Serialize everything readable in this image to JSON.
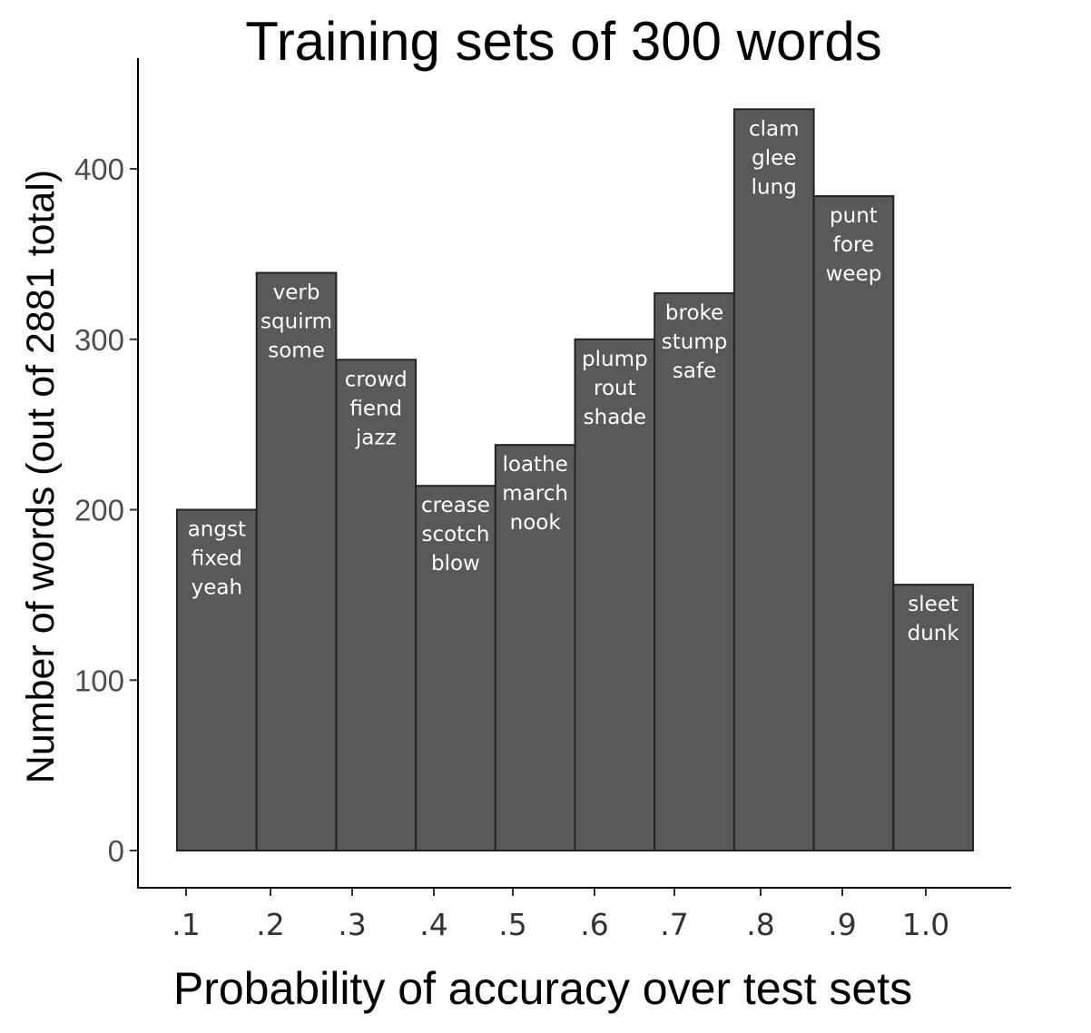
{
  "chart_data": {
    "type": "bar",
    "title": "Training sets of 300 words",
    "xlabel": "Probability of accuracy over test sets",
    "ylabel": "Number of words (out of 2881 total)",
    "categories": [
      ".1",
      ".2",
      ".3",
      ".4",
      ".5",
      ".6",
      ".7",
      ".8",
      ".9",
      "1.0"
    ],
    "x_ticks": [
      ".1",
      ".2",
      ".3",
      ".4",
      ".5",
      ".6",
      ".7",
      ".8",
      ".9",
      "1.0"
    ],
    "values": [
      200,
      339,
      288,
      214,
      238,
      300,
      327,
      435,
      384,
      156
    ],
    "bar_labels": [
      [
        "angst",
        "fixed",
        "yeah"
      ],
      [
        "verb",
        "squirm",
        "some"
      ],
      [
        "crowd",
        "fiend",
        "jazz"
      ],
      [
        "crease",
        "scotch",
        "blow"
      ],
      [
        "loathe",
        "march",
        "nook"
      ],
      [
        "plump",
        "rout",
        "shade"
      ],
      [
        "broke",
        "stump",
        "safe"
      ],
      [
        "clam",
        "glee",
        "lung"
      ],
      [
        "punt",
        "fore",
        "weep"
      ],
      [
        "sleet",
        "dunk"
      ]
    ],
    "y_ticks": [
      0,
      100,
      200,
      300,
      400
    ],
    "ylim": [
      -21,
      465
    ],
    "bar_color": "#595959",
    "bar_edge_color": "#222222",
    "grid": false,
    "legend": "none"
  }
}
